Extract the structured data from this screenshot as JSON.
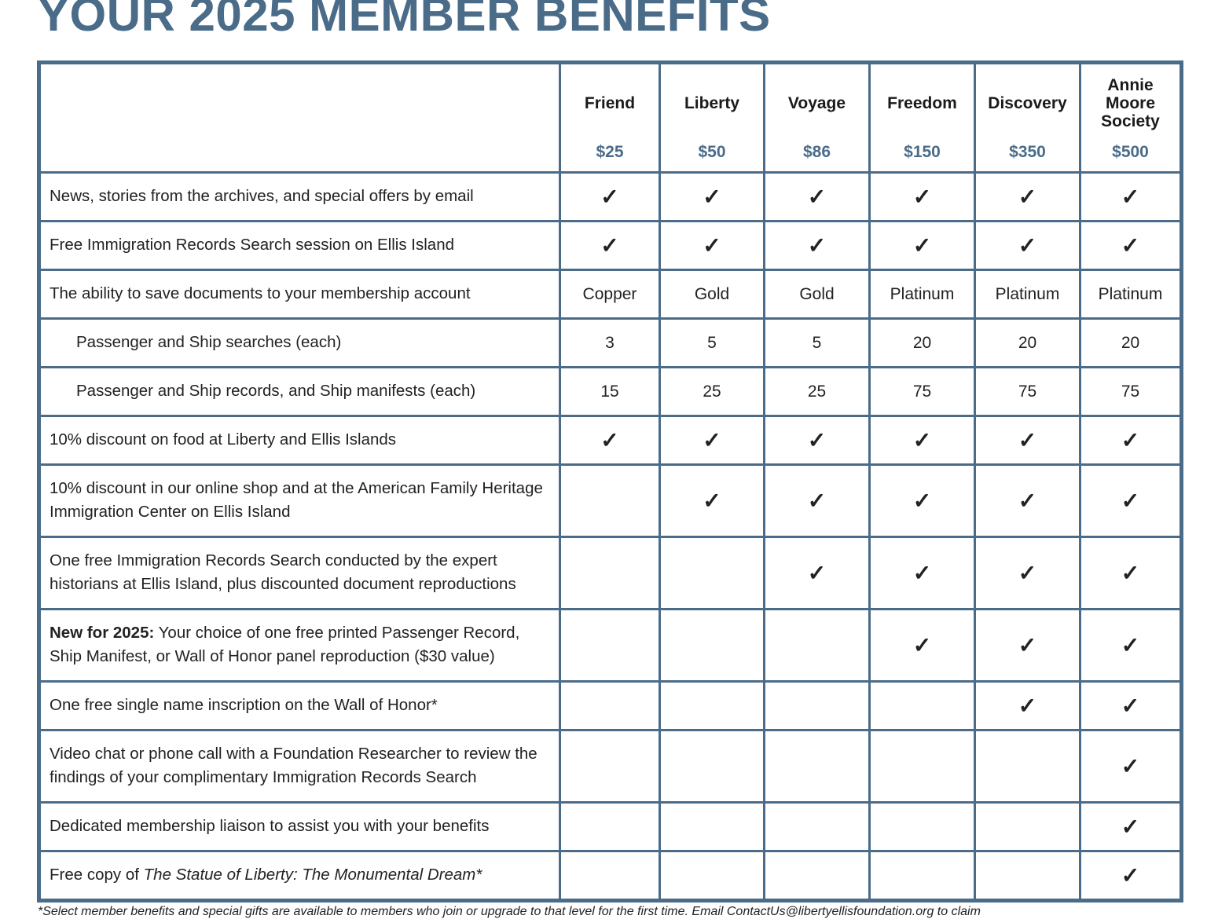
{
  "title": "YOUR 2025 MEMBER BENEFITS",
  "table": {
    "tiers": [
      {
        "name": "Friend",
        "price": "$25"
      },
      {
        "name": "Liberty",
        "price": "$50"
      },
      {
        "name": "Voyage",
        "price": "$86"
      },
      {
        "name": "Freedom",
        "price": "$150"
      },
      {
        "name": "Discovery",
        "price": "$350"
      },
      {
        "name": "Annie Moore Society",
        "price": "$500"
      }
    ],
    "rows": [
      {
        "label": "News, stories from the archives, and special offers by email",
        "cells": [
          "✓",
          "✓",
          "✓",
          "✓",
          "✓",
          "✓"
        ]
      },
      {
        "label": "Free Immigration Records Search session on Ellis Island",
        "cells": [
          "✓",
          "✓",
          "✓",
          "✓",
          "✓",
          "✓"
        ]
      },
      {
        "label": "The ability to save documents to your membership account",
        "cells": [
          "Copper",
          "Gold",
          "Gold",
          "Platinum",
          "Platinum",
          "Platinum"
        ]
      },
      {
        "label": "Passenger and Ship searches (each)",
        "indent": true,
        "cells": [
          3,
          5,
          5,
          20,
          20,
          20
        ]
      },
      {
        "label": "Passenger and Ship records, and Ship manifests (each)",
        "indent": true,
        "cells": [
          15,
          25,
          25,
          75,
          75,
          75
        ]
      },
      {
        "label": "10% discount on food at Liberty and Ellis Islands",
        "cells": [
          "✓",
          "✓",
          "✓",
          "✓",
          "✓",
          "✓"
        ]
      },
      {
        "label": "10% discount in our online shop and at the American Family Heritage Immigration Center on Ellis Island",
        "cells": [
          null,
          "✓",
          "✓",
          "✓",
          "✓",
          "✓"
        ]
      },
      {
        "label": "One free Immigration Records Search conducted by the expert historians at Ellis Island, plus discounted document reproductions",
        "cells": [
          null,
          null,
          "✓",
          "✓",
          "✓",
          "✓"
        ]
      },
      {
        "label_bold": "New for 2025:",
        "label": "Your choice of one free printed Passenger Record, Ship Manifest, or Wall of Honor panel reproduction ($30 value)",
        "cells": [
          null,
          null,
          null,
          "✓",
          "✓",
          "✓"
        ]
      },
      {
        "label": "One free single name inscription on the Wall of Honor*",
        "cells": [
          null,
          null,
          null,
          null,
          "✓",
          "✓"
        ]
      },
      {
        "label": "Video chat or phone call with a Foundation Researcher to review the findings of your complimentary Immigration Records Search",
        "cells": [
          null,
          null,
          null,
          null,
          null,
          "✓"
        ]
      },
      {
        "label": "Dedicated membership liaison to assist you with your benefits",
        "cells": [
          null,
          null,
          null,
          null,
          null,
          "✓"
        ]
      },
      {
        "label": "Free copy of",
        "label_italic": "The Statue of Liberty: The Monumental Dream*",
        "cells": [
          null,
          null,
          null,
          null,
          null,
          "✓"
        ]
      }
    ]
  },
  "footnote": "*Select member benefits and special gifts are available to members who join or upgrade to that level for the first time. Email ContactUs@libertyellisfoundation.org to claim"
}
